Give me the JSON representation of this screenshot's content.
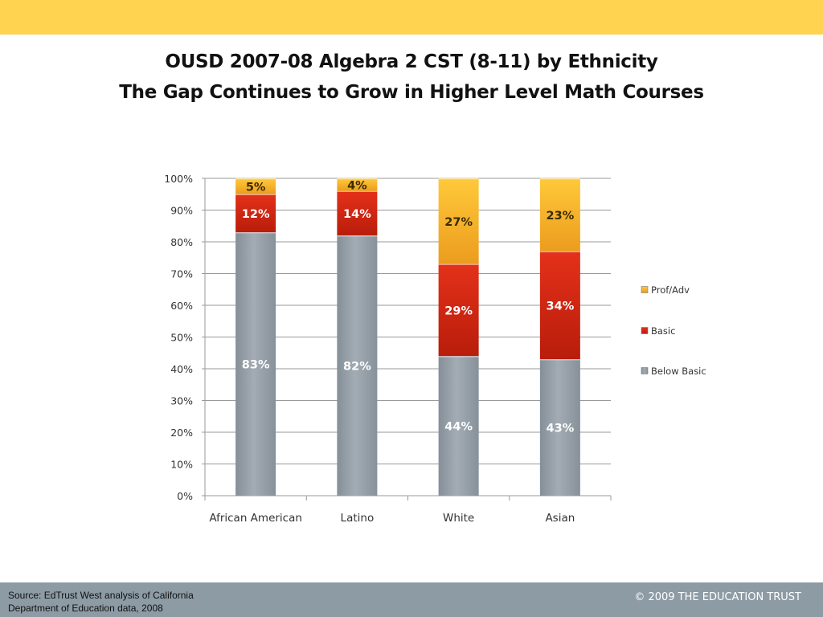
{
  "slide": {
    "title_line1": "OUSD 2007-08 Algebra 2 CST (8-11) by Ethnicity",
    "title_line2": "The Gap Continues to Grow in Higher Level Math Courses",
    "source_line1": "Source:  EdTrust West analysis of California",
    "source_line2": "Department of Education data, 2008",
    "copyright": "© 2009 THE EDUCATION TRUST"
  },
  "colors": {
    "top_bar": "#ffd24f",
    "footer": "#8d9ba5",
    "below_basic": "#9aa3ab",
    "basic": "#d42a12",
    "prof_adv": "#f3b22a"
  },
  "chart_data": {
    "type": "bar",
    "stacked": true,
    "categories": [
      "African American",
      "Latino",
      "White",
      "Asian"
    ],
    "series": [
      {
        "name": "Below Basic",
        "values": [
          83,
          82,
          44,
          43
        ],
        "labels": [
          "83%",
          "82%",
          "44%",
          "43%"
        ],
        "color": "#9aa3ab"
      },
      {
        "name": "Basic",
        "values": [
          12,
          14,
          29,
          34
        ],
        "labels": [
          "12%",
          "14%",
          "29%",
          "34%"
        ],
        "color": "#d42a12"
      },
      {
        "name": "Prof/Adv",
        "values": [
          5,
          4,
          27,
          23
        ],
        "labels": [
          "5%",
          "4%",
          "27%",
          "23%"
        ],
        "color": "#f3b22a"
      }
    ],
    "ylim": [
      0,
      100
    ],
    "yticks": [
      "0%",
      "10%",
      "20%",
      "30%",
      "40%",
      "50%",
      "60%",
      "70%",
      "80%",
      "90%",
      "100%"
    ],
    "grid": true,
    "legend": {
      "placement": "right",
      "order": [
        "Prof/Adv",
        "Basic",
        "Below Basic"
      ]
    }
  }
}
